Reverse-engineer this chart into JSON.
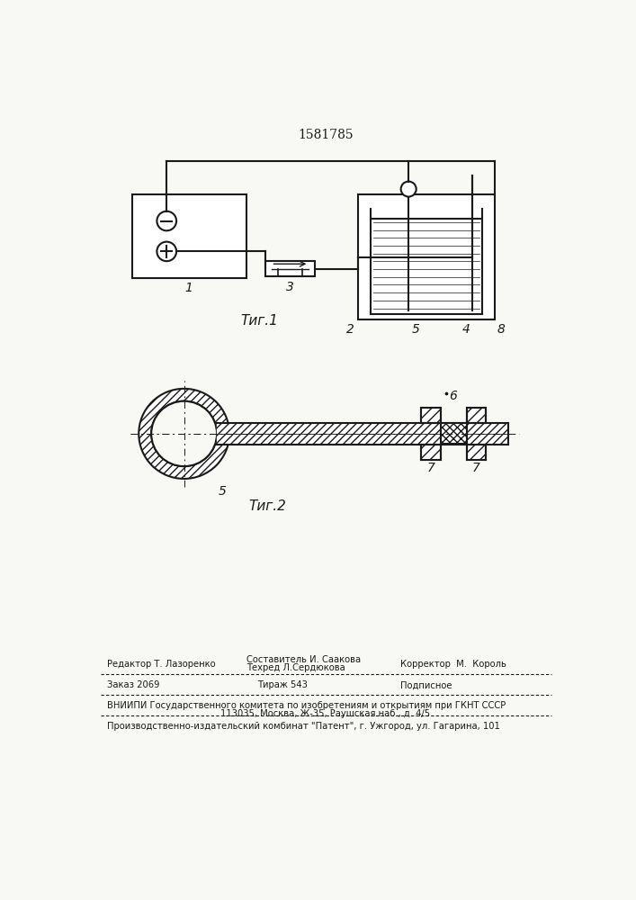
{
  "bg_color": "#f8f8f5",
  "line_color": "#1a1a1a",
  "title_text": "1581785",
  "fig1_label": "Τиг.1",
  "fig2_label": "Τиг.2",
  "label1": "1",
  "label2": "2",
  "label3": "3",
  "label4": "4",
  "label5": "5",
  "label5b": "5",
  "label6": "6",
  "label7a": "7",
  "label7b": "7",
  "label8": "8",
  "footer_line1_left": "Редактор Т. Лазоренко",
  "footer_line1_center": "Составитель И. Саакова",
  "footer_line2_center": "Техред Л.Сердюкова",
  "footer_line1_right": "Корректор  М.  Король",
  "footer_zakaz": "Заказ 2069",
  "footer_tirazh": "Тираж 543",
  "footer_podpisnoe": "Подписное",
  "footer_vniip": "ВНИИПИ Государственного комитета по изобретениям и открытиям при ГКНТ СССР",
  "footer_address": "113035, Москва, Ж-35, Раушская наб., д. 4/5",
  "footer_patent": "Производственно-издательский комбинат \"Патент\", г. Ужгород, ул. Гагарина, 101"
}
